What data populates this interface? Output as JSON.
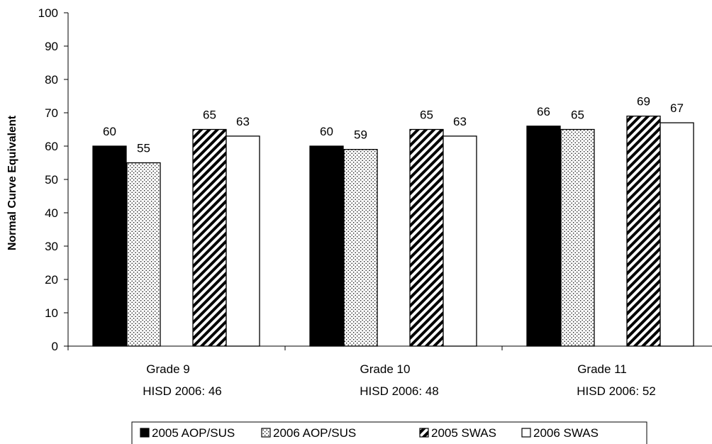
{
  "chart_data": {
    "type": "bar",
    "ylabel": "Normal Curve Equivalent",
    "ylim": [
      0,
      100
    ],
    "yticks": [
      0,
      10,
      20,
      30,
      40,
      50,
      60,
      70,
      80,
      90,
      100
    ],
    "grid": false,
    "legend_position": "bottom",
    "categories": [
      {
        "name": "Grade 9",
        "sublabel": "HISD 2006: 46"
      },
      {
        "name": "Grade 10",
        "sublabel": "HISD 2006: 48"
      },
      {
        "name": "Grade 11",
        "sublabel": "HISD 2006: 52"
      }
    ],
    "series": [
      {
        "name": "2005 AOP/SUS",
        "pattern": "solid-black",
        "values": [
          60,
          60,
          66
        ]
      },
      {
        "name": "2006 AOP/SUS",
        "pattern": "dotted",
        "values": [
          55,
          59,
          65
        ]
      },
      {
        "name": "2005 SWAS",
        "pattern": "diagonal-stripes",
        "values": [
          65,
          65,
          69
        ]
      },
      {
        "name": "2006 SWAS",
        "pattern": "white",
        "values": [
          63,
          63,
          67
        ]
      }
    ],
    "colors": {
      "ink": "#000000",
      "background": "#ffffff"
    }
  }
}
